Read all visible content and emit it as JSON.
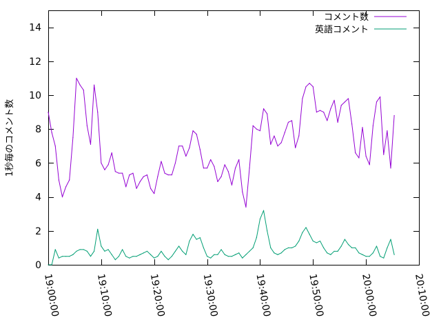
{
  "chart_data": {
    "type": "line",
    "title": "",
    "xlabel": "",
    "ylabel": "1秒毎のコメント数",
    "xlim": [
      "19:00:00",
      "20:10:00"
    ],
    "ylim": [
      0,
      15
    ],
    "x_tick_labels": [
      "19:00:00",
      "19:10:00",
      "19:20:00",
      "19:30:00",
      "19:40:00",
      "19:50:00",
      "20:00:00",
      "20:10:00"
    ],
    "y_tick_labels": [
      "0",
      "2",
      "4",
      "6",
      "8",
      "10",
      "12",
      "14"
    ],
    "y_ticks": [
      0,
      2,
      4,
      6,
      8,
      10,
      12,
      14
    ],
    "grid": false,
    "legend_position": "top-right",
    "x": [
      "19:00:00",
      "19:00:40",
      "19:01:20",
      "19:02:00",
      "19:02:40",
      "19:03:20",
      "19:04:00",
      "19:04:40",
      "19:05:20",
      "19:06:00",
      "19:06:40",
      "19:07:20",
      "19:08:00",
      "19:08:40",
      "19:09:20",
      "19:10:00",
      "19:10:40",
      "19:11:20",
      "19:12:00",
      "19:12:40",
      "19:13:20",
      "19:14:00",
      "19:14:40",
      "19:15:20",
      "19:16:00",
      "19:16:40",
      "19:17:20",
      "19:18:00",
      "19:18:40",
      "19:19:20",
      "19:20:00",
      "19:20:40",
      "19:21:20",
      "19:22:00",
      "19:22:40",
      "19:23:20",
      "19:24:00",
      "19:24:40",
      "19:25:20",
      "19:26:00",
      "19:26:40",
      "19:27:20",
      "19:28:00",
      "19:28:40",
      "19:29:20",
      "19:30:00",
      "19:30:40",
      "19:31:20",
      "19:32:00",
      "19:32:40",
      "19:33:20",
      "19:34:00",
      "19:34:40",
      "19:35:20",
      "19:36:00",
      "19:36:40",
      "19:37:20",
      "19:38:00",
      "19:38:40",
      "19:39:20",
      "19:40:00",
      "19:40:40",
      "19:41:20",
      "19:42:00",
      "19:42:40",
      "19:43:20",
      "19:44:00",
      "19:44:40",
      "19:45:20",
      "19:46:00",
      "19:46:40",
      "19:47:20",
      "19:48:00",
      "19:48:40",
      "19:49:20",
      "19:50:00",
      "19:50:40",
      "19:51:20",
      "19:52:00",
      "19:52:40",
      "19:53:20",
      "19:54:00",
      "19:54:40",
      "19:55:20",
      "19:56:00",
      "19:56:40",
      "19:57:20",
      "19:58:00",
      "19:58:40",
      "19:59:20",
      "20:00:00",
      "20:00:40",
      "20:01:20",
      "20:02:00",
      "20:02:40",
      "20:03:20",
      "20:04:00",
      "20:04:40",
      "20:05:20"
    ],
    "series": [
      {
        "name": "コメント数",
        "color": "#9400d3",
        "values": [
          9.0,
          7.8,
          7.0,
          5.0,
          4.0,
          4.6,
          5.0,
          7.5,
          11.0,
          10.6,
          10.3,
          8.2,
          7.1,
          10.6,
          9.0,
          6.0,
          5.6,
          5.9,
          6.6,
          5.5,
          5.4,
          5.4,
          4.6,
          5.3,
          5.4,
          4.5,
          4.9,
          5.2,
          5.3,
          4.5,
          4.2,
          5.2,
          6.1,
          5.4,
          5.3,
          5.3,
          6.0,
          7.0,
          7.0,
          6.4,
          6.9,
          7.9,
          7.7,
          6.8,
          5.7,
          5.7,
          6.2,
          5.8,
          4.9,
          5.2,
          5.9,
          5.5,
          4.7,
          5.7,
          6.2,
          4.3,
          3.4,
          5.7,
          8.2,
          8.0,
          7.9,
          9.2,
          8.9,
          7.1,
          7.6,
          7.0,
          7.2,
          7.8,
          8.4,
          8.5,
          6.9,
          7.6,
          9.8,
          10.5,
          10.7,
          10.5,
          9.0,
          9.1,
          9.0,
          8.5,
          9.2,
          9.7,
          8.4,
          9.4,
          9.6,
          9.8,
          8.3,
          6.6,
          6.3,
          8.1,
          6.4,
          5.9,
          8.2,
          9.6,
          9.9,
          6.5,
          7.9,
          5.7,
          8.8
        ]
      },
      {
        "name": "英語コメント",
        "color": "#009e73",
        "values": [
          0.0,
          0.0,
          0.9,
          0.4,
          0.5,
          0.5,
          0.5,
          0.6,
          0.8,
          0.9,
          0.9,
          0.8,
          0.5,
          0.8,
          2.1,
          1.1,
          0.8,
          0.9,
          0.6,
          0.3,
          0.5,
          0.9,
          0.5,
          0.4,
          0.5,
          0.5,
          0.6,
          0.7,
          0.8,
          0.6,
          0.4,
          0.5,
          0.8,
          0.5,
          0.3,
          0.5,
          0.8,
          1.1,
          0.8,
          0.6,
          1.4,
          1.8,
          1.5,
          1.6,
          1.0,
          0.5,
          0.4,
          0.6,
          0.6,
          0.9,
          0.6,
          0.5,
          0.5,
          0.6,
          0.7,
          0.4,
          0.6,
          0.8,
          1.0,
          1.6,
          2.7,
          3.2,
          2.0,
          1.0,
          0.7,
          0.6,
          0.7,
          0.9,
          1.0,
          1.0,
          1.1,
          1.4,
          1.9,
          2.2,
          1.8,
          1.4,
          1.3,
          1.4,
          1.0,
          0.7,
          0.6,
          0.8,
          0.8,
          1.1,
          1.5,
          1.2,
          1.0,
          1.0,
          0.7,
          0.6,
          0.5,
          0.5,
          0.7,
          1.1,
          0.5,
          0.4,
          1.0,
          1.5,
          0.6
        ]
      }
    ]
  }
}
